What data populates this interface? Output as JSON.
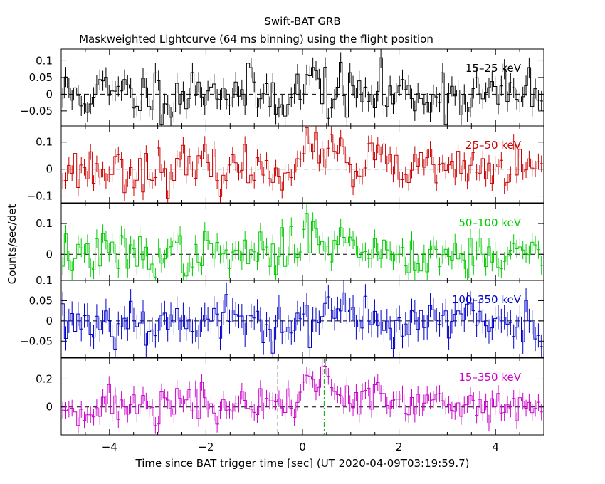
{
  "header": {
    "title": "Swift-BAT GRB",
    "subtitle": "Maskweighted Lightcurve (64 ms binning) using the flight position"
  },
  "axes": {
    "xlabel": "Time since BAT trigger time [sec] (UT 2020-04-09T03:19:59.7)",
    "ylabel": "Counts/sec/det",
    "x_ticks": [
      "−4",
      "−2",
      "0",
      "2",
      "4"
    ]
  },
  "chart_data": {
    "type": "line",
    "xlim": [
      -5.0,
      5.0
    ],
    "bin_width": 0.064,
    "x_tick_values": [
      -4,
      -2,
      0,
      2,
      4
    ],
    "markers": {
      "t1": -0.512,
      "t2": 0.448
    },
    "panels": [
      {
        "name": "15–25 keV",
        "color": "#000000",
        "ylim": [
          -0.095,
          0.135
        ],
        "yticks": [
          0.1,
          0.05,
          0,
          -0.05
        ],
        "ytick_labels": [
          "0.1",
          "0.05",
          "0",
          "−0.05"
        ],
        "base": 0.0,
        "noise": 0.04,
        "err": 0.03,
        "pulses": [
          {
            "t": 0.25,
            "amp": 0.05,
            "w": 0.15
          },
          {
            "t": -1.9,
            "amp": 0.03,
            "w": 0.2
          }
        ],
        "seed": 11
      },
      {
        "name": "25–50 keV",
        "color": "#cc0000",
        "ylim": [
          -0.125,
          0.16
        ],
        "yticks": [
          0.1,
          0,
          -0.1
        ],
        "ytick_labels": [
          "0.1",
          "0",
          "−0.1"
        ],
        "base": 0.0,
        "noise": 0.04,
        "err": 0.03,
        "pulses": [
          {
            "t": 0.4,
            "amp": 0.08,
            "w": 0.35
          },
          {
            "t": 1.45,
            "amp": 0.07,
            "w": 0.12
          },
          {
            "t": 1.15,
            "amp": -0.05,
            "w": 0.12
          }
        ],
        "seed": 23
      },
      {
        "name": "50–100 keV",
        "color": "#00cc00",
        "ylim": [
          -0.085,
          0.165
        ],
        "yticks": [
          0.1,
          0
        ],
        "ytick_labels": [
          "0.1",
          "0"
        ],
        "base": 0.0,
        "noise": 0.035,
        "err": 0.03,
        "pulses": [
          {
            "t": 0.2,
            "amp": 0.08,
            "w": 0.2
          },
          {
            "t": 0.9,
            "amp": 0.03,
            "w": 0.5
          }
        ],
        "seed": 37
      },
      {
        "name": "100–350 keV",
        "color": "#0000cc",
        "ylim": [
          -0.09,
          0.1
        ],
        "yticks": [
          0.1,
          0.05,
          0,
          -0.05
        ],
        "ytick_labels": [
          "0.1",
          "0.05",
          "0",
          "−0.05"
        ],
        "base": 0.0,
        "noise": 0.03,
        "err": 0.03,
        "pulses": [
          {
            "t": 0.8,
            "amp": 0.04,
            "w": 0.1
          }
        ],
        "seed": 53
      },
      {
        "name": "15–350 keV",
        "color": "#cc00cc",
        "ylim": [
          -0.2,
          0.35
        ],
        "yticks": [
          0.2,
          0
        ],
        "ytick_labels": [
          "0.2",
          "0"
        ],
        "base": 0.0,
        "noise": 0.07,
        "err": 0.06,
        "pulses": [
          {
            "t": 0.35,
            "amp": 0.2,
            "w": 0.35
          },
          {
            "t": 1.45,
            "amp": 0.09,
            "w": 0.2
          },
          {
            "t": -2.6,
            "amp": 0.05,
            "w": 0.3
          }
        ],
        "seed": 71
      }
    ]
  }
}
